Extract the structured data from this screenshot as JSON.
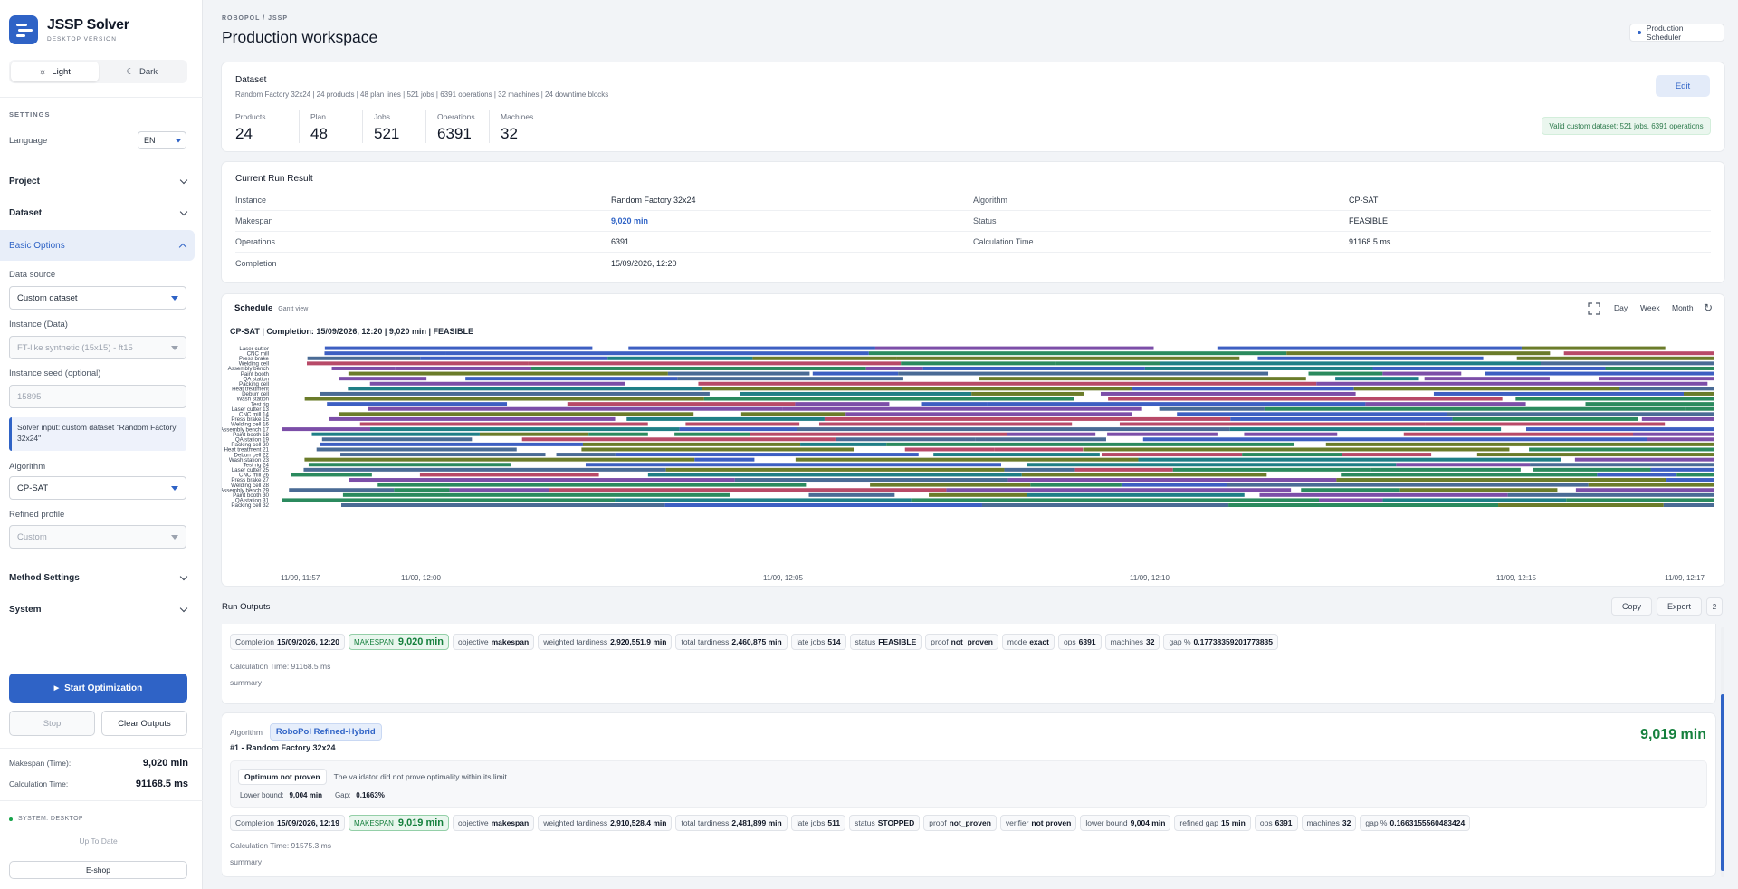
{
  "brand": {
    "title": "JSSP Solver",
    "subtitle": "DESKTOP VERSION"
  },
  "theme": {
    "light": "Light",
    "dark": "Dark"
  },
  "settings": {
    "heading": "SETTINGS",
    "language_label": "Language",
    "language_value": "EN"
  },
  "sections": {
    "project": "Project",
    "dataset": "Dataset",
    "basic": "Basic Options",
    "method": "Method Settings",
    "system": "System"
  },
  "form": {
    "data_source_label": "Data source",
    "data_source_value": "Custom dataset",
    "instance_label": "Instance (Data)",
    "instance_value": "FT-like synthetic (15x15) - ft15",
    "seed_label": "Instance seed (optional)",
    "seed_placeholder": "15895",
    "note": "Solver input: custom dataset \"Random Factory 32x24\"",
    "algorithm_label": "Algorithm",
    "algorithm_value": "CP-SAT",
    "profile_label": "Refined profile",
    "profile_value": "Custom"
  },
  "actions": {
    "start": "Start Optimization",
    "stop": "Stop",
    "clear": "Clear Outputs"
  },
  "summary": {
    "makespan_label": "Makespan (Time):",
    "makespan_value": "9,020 min",
    "calc_label": "Calculation Time:",
    "calc_value": "91168.5 ms"
  },
  "footer": {
    "system": "SYSTEM: DESKTOP",
    "status": "Up To Date",
    "shop": "E-shop"
  },
  "header": {
    "breadcrumb": "ROBOPOL / JSSP",
    "title": "Production workspace",
    "badge": "Production Scheduler"
  },
  "dataset": {
    "title": "Dataset",
    "desc": "Random Factory 32x24 | 24 products | 48 plan lines | 521 jobs | 6391 operations | 32 machines | 24 downtime blocks",
    "edit": "Edit",
    "valid": "Valid custom dataset: 521 jobs, 6391 operations",
    "stats": [
      {
        "label": "Products",
        "value": "24"
      },
      {
        "label": "Plan",
        "value": "48"
      },
      {
        "label": "Jobs",
        "value": "521"
      },
      {
        "label": "Operations",
        "value": "6391"
      },
      {
        "label": "Machines",
        "value": "32"
      }
    ]
  },
  "run_result": {
    "title": "Current Run Result",
    "rows": [
      {
        "k1": "Instance",
        "v1": "Random Factory 32x24",
        "k2": "Algorithm",
        "v2": "CP-SAT"
      },
      {
        "k1": "Makespan",
        "v1": "9,020 min",
        "k2": "Status",
        "v2": "FEASIBLE"
      },
      {
        "k1": "Operations",
        "v1": "6391",
        "k2": "Calculation Time",
        "v2": "91168.5 ms"
      },
      {
        "k1": "Completion",
        "v1": "15/09/2026, 12:20",
        "k2": "",
        "v2": ""
      }
    ]
  },
  "schedule": {
    "title": "Schedule",
    "sub": "Gantt view",
    "day": "Day",
    "week": "Week",
    "month": "Month",
    "chart_title": "CP-SAT | Completion: 15/09/2026, 12:20 | 9,020 min | FEASIBLE"
  },
  "chart_data": {
    "type": "gantt",
    "machines": [
      "Laser cutter",
      "CNC mill",
      "Press brake",
      "Welding cell",
      "Assembly bench",
      "Paint booth",
      "QA station",
      "Packing cell",
      "Heat treatment",
      "Deburr cell",
      "Wash station",
      "Test rig",
      "Laser cutter 13",
      "CNC mill 14",
      "Press brake 15",
      "Welding cell 16",
      "Assembly bench 17",
      "Paint booth 18",
      "QA station 19",
      "Packing cell 20",
      "Heat treatment 21",
      "Deburr cell 22",
      "Wash station 23",
      "Test rig 24",
      "Laser cutter 25",
      "CNC mill 26",
      "Press brake 27",
      "Welding cell 28",
      "Assembly bench 29",
      "Paint booth 30",
      "QA station 31",
      "Packing cell 32"
    ],
    "x_ticks": [
      "11/09, 11:57",
      "11/09, 12:00",
      "11/09, 12:05",
      "11/09, 12:10",
      "11/09, 12:15",
      "11/09, 12:17"
    ],
    "colors": [
      "#3d5fc2",
      "#2b8a5e",
      "#7c4ea8",
      "#b84a68",
      "#6b7c2a",
      "#4a6b95",
      "#1f7f86"
    ]
  },
  "outputs": {
    "title": "Run Outputs",
    "copy": "Copy",
    "export": "Export",
    "count": "2",
    "run1": {
      "chips": [
        {
          "k": "Completion",
          "v": "15/09/2026, 12:20"
        },
        {
          "k": "MAKESPAN",
          "v": "9,020 min",
          "mk": true
        },
        {
          "k": "objective",
          "v": "makespan"
        },
        {
          "k": "weighted tardiness",
          "v": "2,920,551.9 min"
        },
        {
          "k": "total tardiness",
          "v": "2,460,875 min"
        },
        {
          "k": "late jobs",
          "v": "514"
        },
        {
          "k": "status",
          "v": "FEASIBLE"
        },
        {
          "k": "proof",
          "v": "not_proven"
        },
        {
          "k": "mode",
          "v": "exact"
        },
        {
          "k": "ops",
          "v": "6391"
        },
        {
          "k": "machines",
          "v": "32"
        },
        {
          "k": "gap %",
          "v": "0.17738359201773835"
        }
      ],
      "calc": "Calculation Time: 91168.5 ms",
      "summary": "summary"
    },
    "run2": {
      "algo_label": "Algorithm",
      "algo": "RoboPol Refined-Hybrid",
      "instance": "#1 - Random Factory 32x24",
      "result": "9,019 min",
      "proof_badge": "Optimum not proven",
      "proof_text": "The validator did not prove optimality within its limit.",
      "lb_label": "Lower bound:",
      "lb": "9,004 min",
      "gap_label": "Gap:",
      "gap": "0.1663%",
      "chips": [
        {
          "k": "Completion",
          "v": "15/09/2026, 12:19"
        },
        {
          "k": "MAKESPAN",
          "v": "9,019 min",
          "mk": true
        },
        {
          "k": "objective",
          "v": "makespan"
        },
        {
          "k": "weighted tardiness",
          "v": "2,910,528.4 min"
        },
        {
          "k": "total tardiness",
          "v": "2,481,899 min"
        },
        {
          "k": "late jobs",
          "v": "511"
        },
        {
          "k": "status",
          "v": "STOPPED"
        },
        {
          "k": "proof",
          "v": "not_proven"
        },
        {
          "k": "verifier",
          "v": "not proven"
        },
        {
          "k": "lower bound",
          "v": "9,004 min"
        },
        {
          "k": "refined gap",
          "v": "15 min"
        },
        {
          "k": "ops",
          "v": "6391"
        },
        {
          "k": "machines",
          "v": "32"
        },
        {
          "k": "gap %",
          "v": "0.1663155560483424"
        }
      ],
      "calc": "Calculation Time: 91575.3 ms",
      "summary": "summary"
    }
  }
}
